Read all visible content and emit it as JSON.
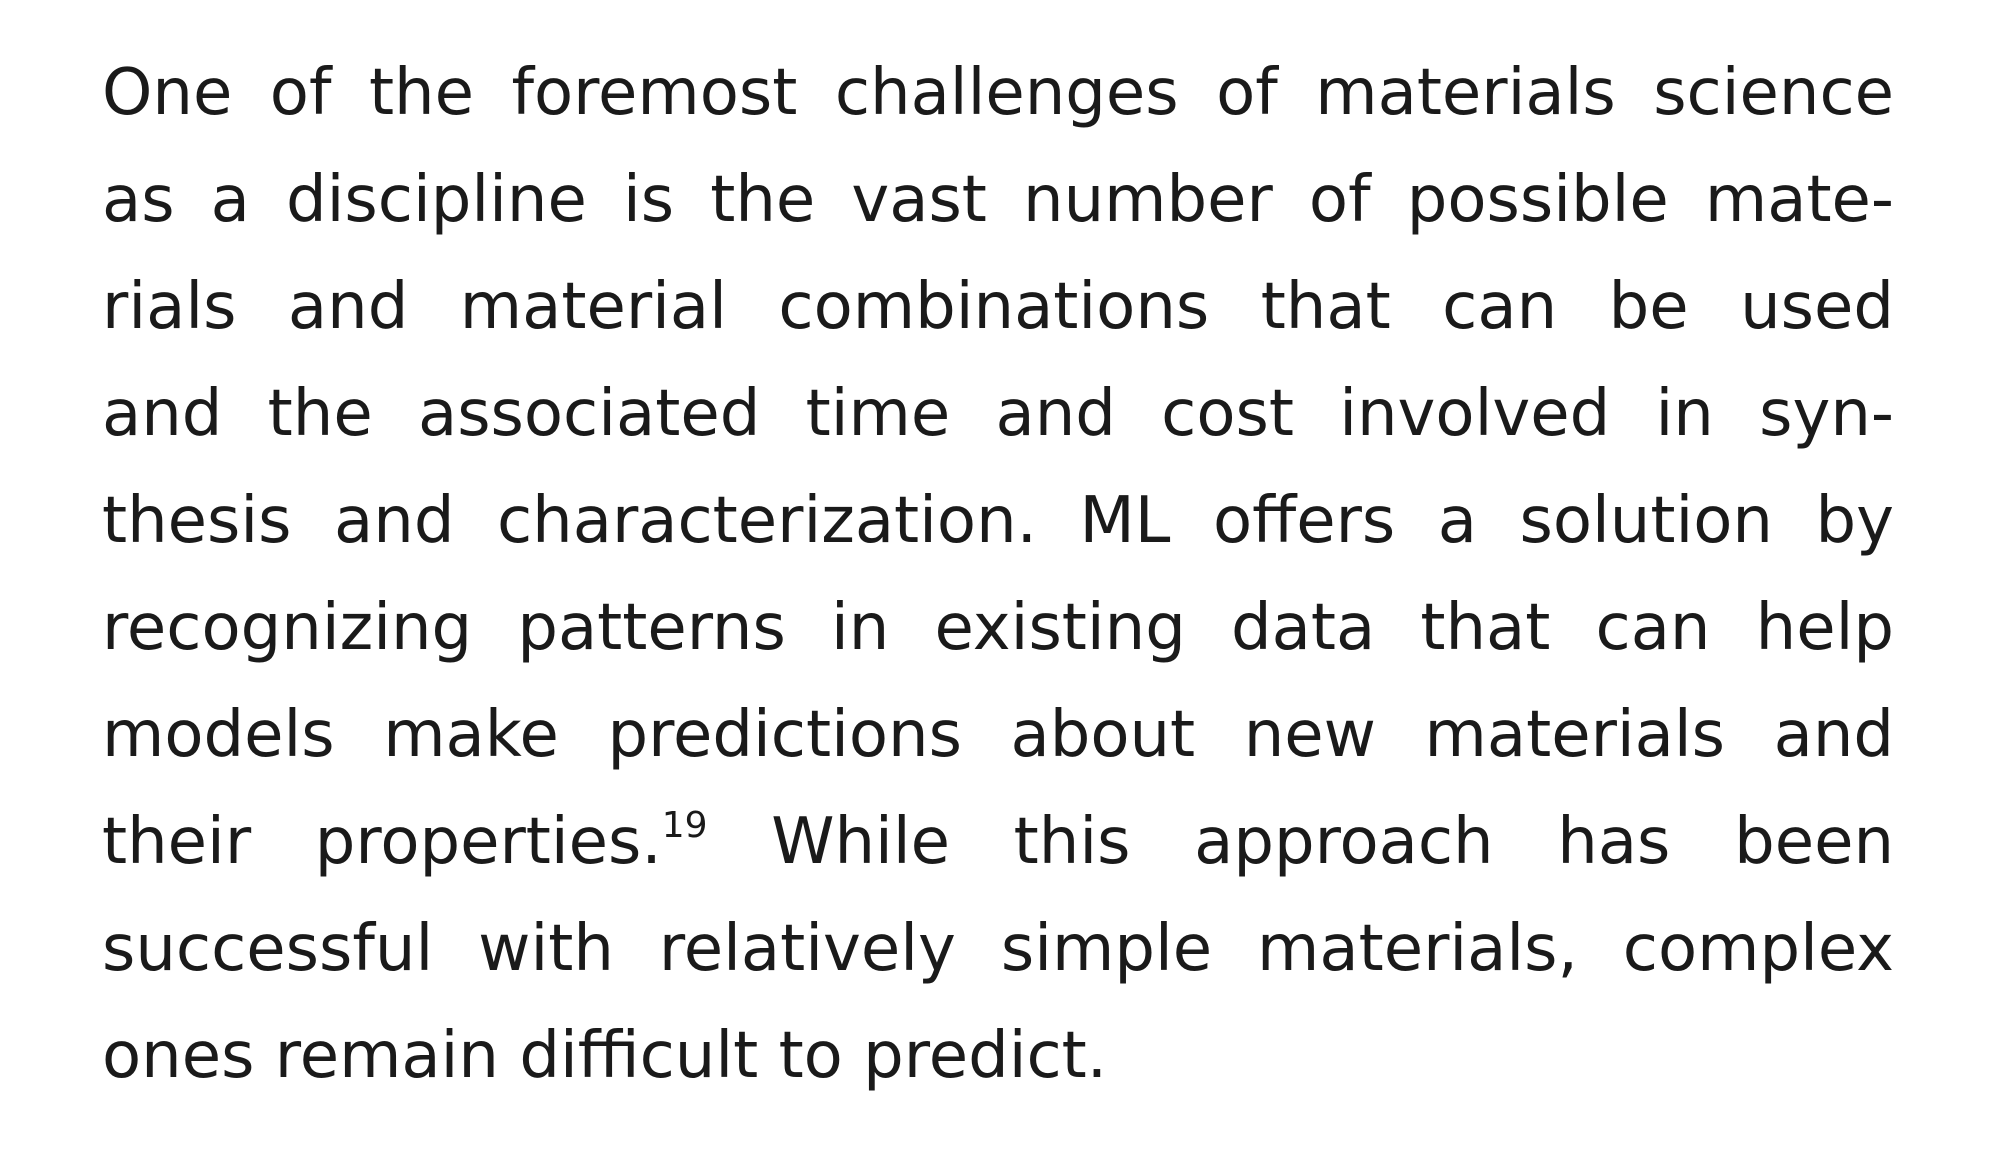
{
  "paragraph": {
    "lines": [
      "One of the foremost challenges of materials science",
      "as a discipline is the vast number of possible mate-",
      "rials and material combinations that can be used",
      "and the associated time and cost involved in syn-",
      "thesis and characterization. ML offers a solution by",
      "recognizing patterns in existing data that can help",
      "models make predictions about new materials and",
      "their properties.",
      "successful with relatively simple materials, complex",
      "ones remain difficult to predict."
    ],
    "citation": "19",
    "line8_after_citation": " While this approach has been"
  }
}
